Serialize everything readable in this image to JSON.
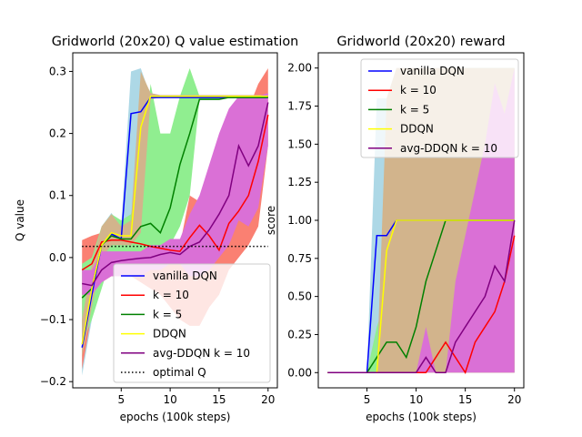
{
  "chart_data": [
    {
      "type": "line",
      "title": "Gridworld (20x20) Q value estimation",
      "xlabel": "epochs (100k steps)",
      "ylabel": "Q value",
      "xlim": [
        0.05,
        20.95
      ],
      "ylim": [
        -0.21,
        0.33
      ],
      "xticks": [
        5,
        10,
        15,
        20
      ],
      "yticks": [
        -0.2,
        -0.1,
        0.0,
        0.1,
        0.2,
        0.3
      ],
      "ytick_labels": [
        "−0.2",
        "−0.1",
        "0.0",
        "0.1",
        "0.2",
        "0.3"
      ],
      "legend_position": "lower-right",
      "x": [
        1,
        2,
        3,
        4,
        5,
        6,
        7,
        8,
        9,
        10,
        11,
        12,
        13,
        14,
        15,
        16,
        17,
        18,
        19,
        20
      ],
      "series": [
        {
          "name": "vanilla DQN",
          "color": "#0000ff",
          "values": [
            -0.145,
            -0.06,
            0.02,
            0.038,
            0.03,
            0.232,
            0.235,
            0.258,
            0.258,
            0.258,
            0.258,
            0.258,
            0.258,
            0.258,
            0.258,
            0.258,
            0.258,
            0.258,
            0.258,
            0.258
          ],
          "band_lower": [
            -0.19,
            -0.1,
            -0.01,
            0.02,
            0.015,
            0.02,
            0.2,
            0.258,
            0.258,
            0.258,
            0.258,
            0.258,
            0.258,
            0.258,
            0.258,
            0.258,
            0.258,
            0.258,
            0.258,
            0.258
          ],
          "band_upper": [
            -0.1,
            -0.02,
            0.05,
            0.072,
            0.05,
            0.3,
            0.305,
            0.26,
            0.26,
            0.26,
            0.26,
            0.26,
            0.26,
            0.26,
            0.26,
            0.26,
            0.26,
            0.26,
            0.26,
            0.26
          ],
          "band_color": "#add8e6"
        },
        {
          "name": "k = 10",
          "color": "#ff0000",
          "values": [
            -0.02,
            -0.01,
            0.025,
            0.028,
            0.028,
            0.025,
            0.022,
            0.018,
            0.015,
            0.012,
            0.01,
            0.032,
            0.052,
            0.035,
            0.012,
            0.055,
            0.075,
            0.1,
            0.155,
            0.23
          ],
          "band_lower": [
            -0.18,
            -0.09,
            -0.04,
            -0.03,
            -0.03,
            -0.03,
            -0.04,
            -0.05,
            -0.06,
            -0.08,
            -0.1,
            -0.11,
            -0.11,
            -0.08,
            -0.06,
            -0.02,
            0.0,
            0.02,
            0.05,
            0.18
          ],
          "band_upper": [
            0.028,
            0.035,
            0.04,
            0.045,
            0.05,
            0.045,
            0.04,
            0.025,
            0.02,
            0.02,
            0.02,
            0.1,
            0.09,
            0.07,
            0.06,
            0.15,
            0.2,
            0.24,
            0.28,
            0.305
          ],
          "band_color": "#fa8072"
        },
        {
          "name": "k = 5",
          "color": "#008000",
          "values": [
            -0.065,
            -0.05,
            0.02,
            0.035,
            0.03,
            0.03,
            0.05,
            0.055,
            0.04,
            0.08,
            0.15,
            0.2,
            0.255,
            0.255,
            0.255,
            0.258,
            0.258,
            0.258,
            0.258,
            0.258
          ],
          "band_lower": [
            -0.14,
            -0.1,
            -0.05,
            0.0,
            0.0,
            0.0,
            0.01,
            0.02,
            0.0,
            0.02,
            0.05,
            0.1,
            0.255,
            0.255,
            0.255,
            0.258,
            0.258,
            0.258,
            0.258,
            0.258
          ],
          "band_upper": [
            -0.01,
            0.0,
            0.05,
            0.07,
            0.06,
            0.07,
            0.13,
            0.28,
            0.2,
            0.2,
            0.26,
            0.305,
            0.26,
            0.26,
            0.26,
            0.26,
            0.26,
            0.26,
            0.26,
            0.26
          ],
          "band_color": "#90ee90"
        },
        {
          "name": "DDQN",
          "color": "#ffff00",
          "values": [
            -0.14,
            -0.05,
            0.02,
            0.04,
            0.035,
            0.035,
            0.21,
            0.26,
            0.26,
            0.26,
            0.26,
            0.26,
            0.26,
            0.26,
            0.26,
            0.26,
            0.26,
            0.26,
            0.26,
            0.26
          ],
          "band_lower": [
            -0.16,
            -0.08,
            0.0,
            0.02,
            0.02,
            0.02,
            0.04,
            0.255,
            0.258,
            0.258,
            0.258,
            0.258,
            0.258,
            0.258,
            0.258,
            0.258,
            0.258,
            0.258,
            0.258,
            0.258
          ],
          "band_upper": [
            -0.1,
            -0.01,
            0.05,
            0.07,
            0.05,
            0.06,
            0.3,
            0.265,
            0.262,
            0.262,
            0.262,
            0.262,
            0.262,
            0.262,
            0.262,
            0.262,
            0.262,
            0.262,
            0.262,
            0.262
          ],
          "band_color": "#d2b48c"
        },
        {
          "name": "avg-DDQN k = 10",
          "color": "#800080",
          "values": [
            -0.042,
            -0.045,
            -0.02,
            -0.008,
            -0.005,
            -0.003,
            -0.001,
            0.0,
            0.005,
            0.008,
            0.005,
            0.018,
            0.025,
            0.045,
            0.07,
            0.1,
            0.18,
            0.148,
            0.18,
            0.25
          ],
          "band_lower": [
            -0.06,
            -0.06,
            -0.04,
            -0.03,
            -0.03,
            -0.03,
            -0.03,
            -0.02,
            -0.02,
            -0.01,
            -0.01,
            -0.03,
            -0.03,
            -0.02,
            0.0,
            0.02,
            0.06,
            0.05,
            0.08,
            0.18
          ],
          "band_upper": [
            -0.02,
            -0.02,
            0.01,
            0.01,
            0.01,
            0.01,
            0.01,
            0.02,
            0.02,
            0.03,
            0.03,
            0.07,
            0.1,
            0.15,
            0.2,
            0.24,
            0.26,
            0.26,
            0.26,
            0.265
          ],
          "band_color": "#da70d6"
        },
        {
          "name": "optimal Q",
          "color": "#000000",
          "style": "dotted",
          "values": [
            0.018,
            0.018,
            0.018,
            0.018,
            0.018,
            0.018,
            0.018,
            0.018,
            0.018,
            0.018,
            0.018,
            0.018,
            0.018,
            0.018,
            0.018,
            0.018,
            0.018,
            0.018,
            0.018,
            0.018
          ]
        }
      ]
    },
    {
      "type": "line",
      "title": "Gridworld (20x20) reward",
      "xlabel": "epochs (100k steps)",
      "ylabel": "score",
      "xlim": [
        0.05,
        20.95
      ],
      "ylim": [
        -0.1,
        2.1
      ],
      "xticks": [
        5,
        10,
        15,
        20
      ],
      "yticks": [
        0.0,
        0.25,
        0.5,
        0.75,
        1.0,
        1.25,
        1.5,
        1.75,
        2.0
      ],
      "ytick_labels": [
        "0.00",
        "0.25",
        "0.50",
        "0.75",
        "1.00",
        "1.25",
        "1.50",
        "1.75",
        "2.00"
      ],
      "legend_position": "upper-right",
      "x": [
        1,
        2,
        3,
        4,
        5,
        6,
        7,
        8,
        9,
        10,
        11,
        12,
        13,
        14,
        15,
        16,
        17,
        18,
        19,
        20
      ],
      "series": [
        {
          "name": "vanilla DQN",
          "color": "#0000ff",
          "values": [
            0,
            0,
            0,
            0,
            0,
            0.9,
            0.9,
            1,
            1,
            1,
            1,
            1,
            1,
            1,
            1,
            1,
            1,
            1,
            1,
            1
          ],
          "band_lower": [
            0,
            0,
            0,
            0,
            0,
            0,
            0,
            0,
            0,
            0,
            0,
            0,
            0,
            0,
            0,
            0,
            0,
            0,
            0,
            0
          ],
          "band_upper": [
            0,
            0,
            0,
            0,
            0,
            1.8,
            1.8,
            2,
            2,
            2,
            2,
            2,
            2,
            2,
            2,
            2,
            2,
            2,
            2,
            2
          ],
          "band_color": "#add8e6"
        },
        {
          "name": "k = 10",
          "color": "#ff0000",
          "values": [
            0,
            0,
            0,
            0,
            0,
            0,
            0,
            0,
            0,
            0,
            0,
            0.1,
            0.2,
            0.1,
            0,
            0.2,
            0.3,
            0.4,
            0.6,
            0.9
          ],
          "band_lower": [
            0,
            0,
            0,
            0,
            0,
            0,
            0,
            0,
            0,
            0,
            0,
            0,
            0,
            0,
            0,
            0,
            0,
            0,
            0,
            0
          ],
          "band_upper": [
            0,
            0,
            0,
            0,
            0,
            0,
            0,
            0,
            0,
            0,
            0,
            0.25,
            0.5,
            0.3,
            0,
            0.6,
            0.9,
            1.2,
            1.5,
            2
          ],
          "band_color": "#fa8072"
        },
        {
          "name": "k = 5",
          "color": "#008000",
          "values": [
            0,
            0,
            0,
            0,
            0,
            0.1,
            0.2,
            0.2,
            0.1,
            0.3,
            0.6,
            0.8,
            1,
            1,
            1,
            1,
            1,
            1,
            1,
            1
          ],
          "band_lower": [
            0,
            0,
            0,
            0,
            0,
            0,
            0,
            0,
            0,
            0,
            0,
            0,
            0,
            0,
            0,
            0,
            0,
            0,
            0,
            0
          ],
          "band_upper": [
            0,
            0,
            0,
            0,
            0,
            0.3,
            0.5,
            0.5,
            0.3,
            0.8,
            1.4,
            1.8,
            2,
            2,
            2,
            2,
            2,
            2,
            2,
            2
          ],
          "band_color": "#90ee90"
        },
        {
          "name": "DDQN",
          "color": "#ffff00",
          "values": [
            0,
            0,
            0,
            0,
            0,
            0,
            0.8,
            1,
            1,
            1,
            1,
            1,
            1,
            1,
            1,
            1,
            1,
            1,
            1,
            1
          ],
          "band_lower": [
            0,
            0,
            0,
            0,
            0,
            0,
            0,
            0,
            0,
            0,
            0,
            0,
            0,
            0,
            0,
            0,
            0,
            0,
            0,
            0
          ],
          "band_upper": [
            0,
            0,
            0,
            0,
            0,
            0,
            1.8,
            2,
            2,
            2,
            2,
            2,
            2,
            2,
            2,
            2,
            2,
            2,
            2,
            2
          ],
          "band_color": "#d2b48c"
        },
        {
          "name": "avg-DDQN k = 10",
          "color": "#800080",
          "values": [
            0,
            0,
            0,
            0,
            0,
            0,
            0,
            0,
            0,
            0,
            0.1,
            0,
            0,
            0.2,
            0.3,
            0.4,
            0.5,
            0.7,
            0.6,
            1
          ],
          "band_lower": [
            0,
            0,
            0,
            0,
            0,
            0,
            0,
            0,
            0,
            0,
            0,
            0,
            0,
            0,
            0,
            0,
            0,
            0,
            0,
            0
          ],
          "band_upper": [
            0,
            0,
            0,
            0,
            0,
            0,
            0,
            0,
            0,
            0,
            0.3,
            0,
            0,
            0.6,
            0.9,
            1.2,
            1.5,
            1.9,
            1.7,
            2
          ],
          "band_color": "#da70d6"
        }
      ]
    }
  ]
}
